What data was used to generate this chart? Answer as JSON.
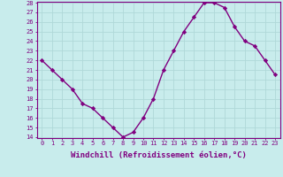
{
  "x": [
    0,
    1,
    2,
    3,
    4,
    5,
    6,
    7,
    8,
    9,
    10,
    11,
    12,
    13,
    14,
    15,
    16,
    17,
    18,
    19,
    20,
    21,
    22,
    23
  ],
  "y": [
    22,
    21,
    20,
    19,
    17.5,
    17,
    16,
    15,
    14,
    14.5,
    16,
    18,
    21,
    23,
    25,
    26.5,
    28,
    28,
    27.5,
    25.5,
    24,
    23.5,
    22,
    20.5
  ],
  "line_color": "#800080",
  "marker": "D",
  "marker_size": 2.2,
  "bg_color": "#c8ecec",
  "grid_color": "#b0d8d8",
  "xlabel": "Windchill (Refroidissement éolien,°C)",
  "ylim": [
    14,
    28
  ],
  "xlim": [
    -0.5,
    23.5
  ],
  "yticks": [
    14,
    15,
    16,
    17,
    18,
    19,
    20,
    21,
    22,
    23,
    24,
    25,
    26,
    27,
    28
  ],
  "xticks": [
    0,
    1,
    2,
    3,
    4,
    5,
    6,
    7,
    8,
    9,
    10,
    11,
    12,
    13,
    14,
    15,
    16,
    17,
    18,
    19,
    20,
    21,
    22,
    23
  ],
  "tick_color": "#800080",
  "tick_fontsize": 5.0,
  "xlabel_fontsize": 6.5,
  "spine_color": "#800080",
  "linewidth": 1.0
}
